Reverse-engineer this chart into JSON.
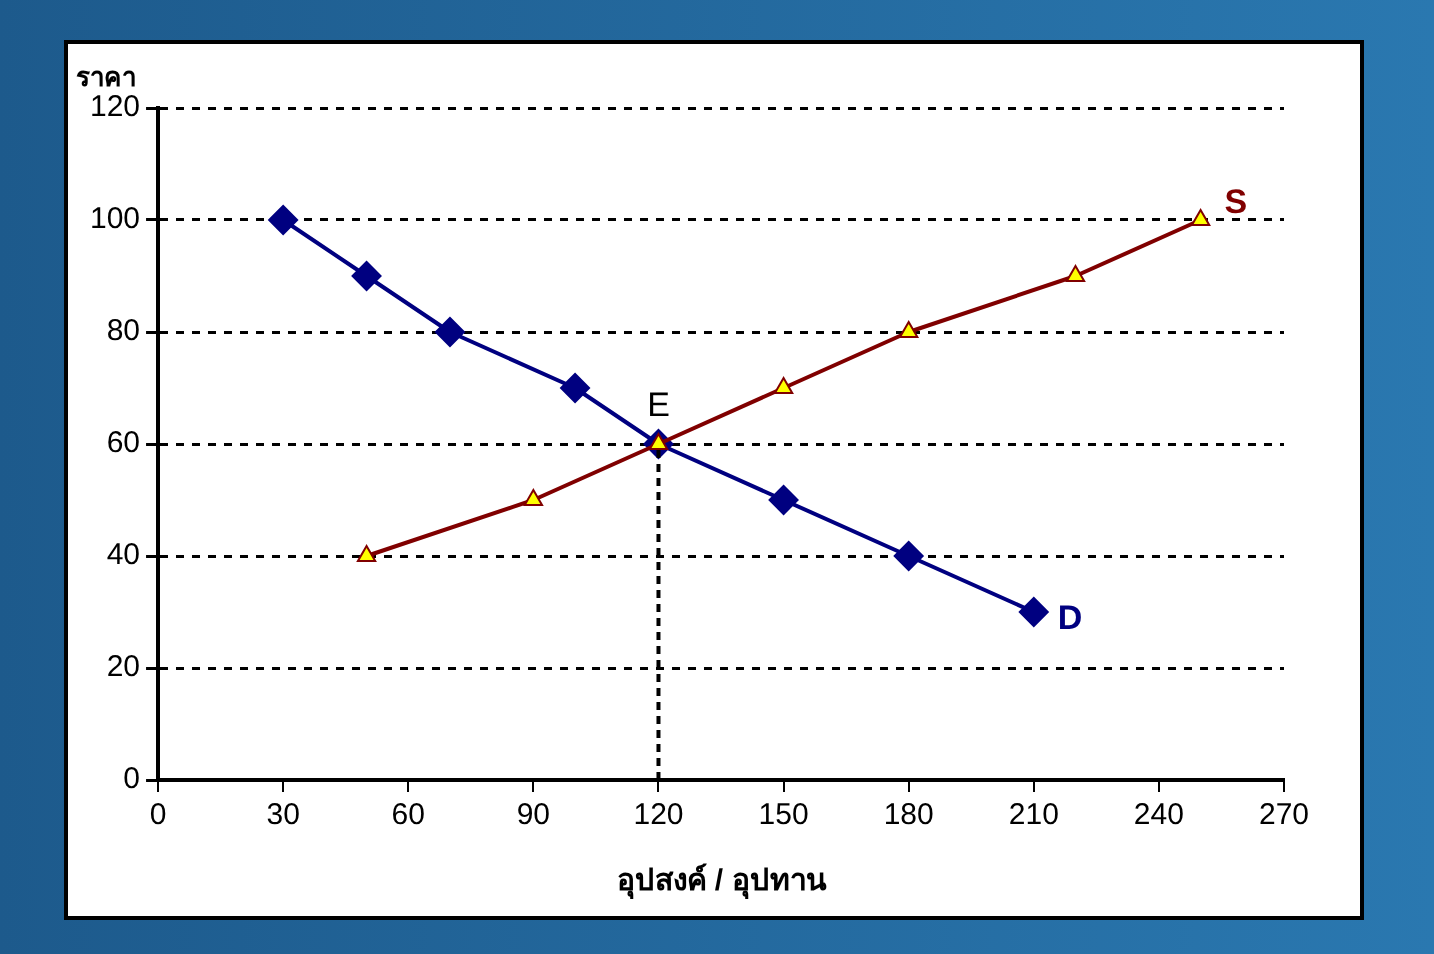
{
  "chart_data": {
    "type": "line",
    "xlabel": "อุปสงค์ / อุปทาน",
    "ylabel": "ราคา",
    "xlim": [
      0,
      270
    ],
    "xticks": [
      0,
      30,
      60,
      90,
      120,
      150,
      180,
      210,
      240,
      270
    ],
    "ylim": [
      0,
      120
    ],
    "yticks": [
      0,
      20,
      40,
      60,
      80,
      100,
      120
    ],
    "grid": "y",
    "series": [
      {
        "name": "D",
        "color": "#000080",
        "marker": "diamond",
        "x": [
          30,
          50,
          70,
          100,
          120,
          150,
          180,
          210
        ],
        "values": [
          100,
          90,
          80,
          70,
          60,
          50,
          40,
          30
        ]
      },
      {
        "name": "S",
        "color": "#800000",
        "colors": [
          "#ffff00",
          "#ffff00",
          "#ffff00",
          "#ffff00",
          "#ffff00",
          "#ffff00",
          "#ffff00"
        ],
        "marker": "triangle",
        "x": [
          50,
          90,
          120,
          150,
          180,
          220,
          250
        ],
        "values": [
          40,
          50,
          60,
          70,
          80,
          90,
          100
        ]
      },
      {
        "color": "#000000",
        "marker": "none",
        "line_style": "dashed",
        "x": [
          120,
          120
        ],
        "values": [
          0,
          60
        ]
      }
    ],
    "annotations": [
      {
        "text": "E",
        "x": 120,
        "y": 60
      }
    ]
  }
}
